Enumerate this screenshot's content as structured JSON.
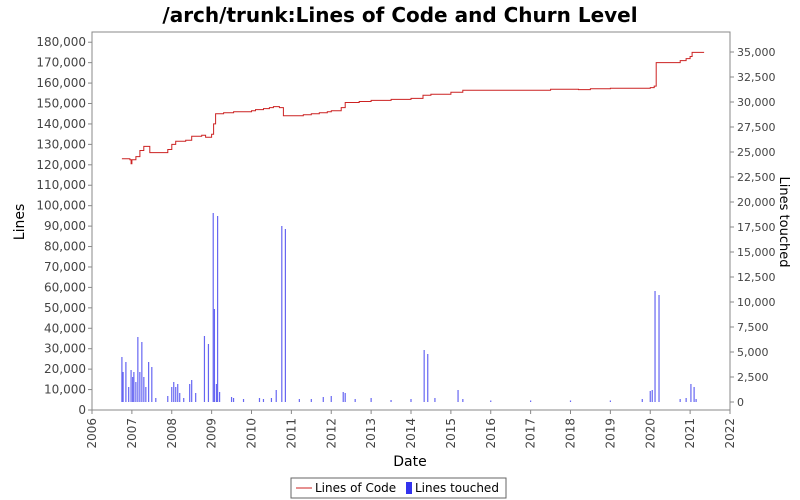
{
  "chart_data": {
    "type": "line",
    "title": "/arch/trunk:Lines of Code and Churn Level",
    "xlabel": "Date",
    "ylabel": "Lines",
    "y2label": "Lines touched",
    "xlim": [
      2006.0,
      2022.0
    ],
    "ylim": [
      0,
      185000
    ],
    "y2lim": [
      -800,
      37000
    ],
    "x_ticks": [
      "2006",
      "2007",
      "2008",
      "2009",
      "2010",
      "2011",
      "2012",
      "2013",
      "2014",
      "2015",
      "2016",
      "2017",
      "2018",
      "2019",
      "2020",
      "2021",
      "2022"
    ],
    "y_ticks": [
      0,
      10000,
      20000,
      30000,
      40000,
      50000,
      60000,
      70000,
      80000,
      90000,
      100000,
      110000,
      120000,
      130000,
      140000,
      150000,
      160000,
      170000,
      180000
    ],
    "y_tick_labels": [
      "0",
      "10,000",
      "20,000",
      "30,000",
      "40,000",
      "50,000",
      "60,000",
      "70,000",
      "80,000",
      "90,000",
      "100,000",
      "110,000",
      "120,000",
      "130,000",
      "140,000",
      "150,000",
      "160,000",
      "170,000",
      "180,000"
    ],
    "y2_ticks": [
      0,
      2500,
      5000,
      7500,
      10000,
      12500,
      15000,
      17500,
      20000,
      22500,
      25000,
      27500,
      30000,
      32500,
      35000
    ],
    "y2_tick_labels": [
      "0",
      "2,500",
      "5,000",
      "7,500",
      "10,000",
      "12,500",
      "15,000",
      "17,500",
      "20,000",
      "22,500",
      "25,000",
      "27,500",
      "30,000",
      "32,500",
      "35,000"
    ],
    "legend_position": "bottom",
    "series": [
      {
        "name": "Lines of Code",
        "axis": "left",
        "color": "#cc2222",
        "style": "step",
        "points": [
          [
            2006.75,
            123000
          ],
          [
            2006.95,
            122500
          ],
          [
            2006.98,
            120500
          ],
          [
            2007.0,
            122500
          ],
          [
            2007.1,
            124000
          ],
          [
            2007.2,
            127000
          ],
          [
            2007.3,
            129000
          ],
          [
            2007.45,
            126000
          ],
          [
            2007.9,
            127500
          ],
          [
            2008.0,
            130000
          ],
          [
            2008.1,
            131500
          ],
          [
            2008.35,
            132000
          ],
          [
            2008.5,
            134000
          ],
          [
            2008.75,
            134500
          ],
          [
            2008.85,
            133500
          ],
          [
            2009.0,
            135000
          ],
          [
            2009.05,
            140000
          ],
          [
            2009.1,
            145000
          ],
          [
            2009.3,
            145500
          ],
          [
            2009.55,
            146000
          ],
          [
            2010.0,
            146500
          ],
          [
            2010.1,
            147000
          ],
          [
            2010.3,
            147500
          ],
          [
            2010.45,
            148000
          ],
          [
            2010.55,
            148500
          ],
          [
            2010.7,
            148000
          ],
          [
            2010.8,
            144000
          ],
          [
            2011.3,
            144500
          ],
          [
            2011.5,
            145000
          ],
          [
            2011.7,
            145500
          ],
          [
            2011.9,
            146000
          ],
          [
            2012.0,
            146500
          ],
          [
            2012.25,
            148000
          ],
          [
            2012.35,
            150500
          ],
          [
            2012.7,
            151000
          ],
          [
            2013.0,
            151500
          ],
          [
            2013.5,
            152000
          ],
          [
            2014.0,
            152500
          ],
          [
            2014.3,
            154000
          ],
          [
            2014.5,
            154500
          ],
          [
            2015.0,
            155500
          ],
          [
            2015.3,
            156500
          ],
          [
            2016.0,
            156500
          ],
          [
            2017.0,
            156500
          ],
          [
            2017.5,
            157000
          ],
          [
            2018.0,
            157000
          ],
          [
            2018.2,
            156800
          ],
          [
            2018.5,
            157200
          ],
          [
            2019.0,
            157500
          ],
          [
            2020.0,
            157800
          ],
          [
            2020.1,
            158500
          ],
          [
            2020.15,
            170000
          ],
          [
            2020.5,
            170000
          ],
          [
            2020.75,
            171000
          ],
          [
            2020.9,
            172000
          ],
          [
            2021.0,
            173000
          ],
          [
            2021.05,
            175000
          ],
          [
            2021.35,
            175000
          ]
        ]
      },
      {
        "name": "Lines touched",
        "axis": "right",
        "color": "#3333ee",
        "style": "impulse",
        "points": [
          [
            2006.75,
            4500
          ],
          [
            2006.78,
            3000
          ],
          [
            2006.85,
            4000
          ],
          [
            2006.92,
            1500
          ],
          [
            2006.98,
            3200
          ],
          [
            2007.02,
            2500
          ],
          [
            2007.05,
            3000
          ],
          [
            2007.1,
            2000
          ],
          [
            2007.15,
            6500
          ],
          [
            2007.2,
            3000
          ],
          [
            2007.25,
            6000
          ],
          [
            2007.3,
            2500
          ],
          [
            2007.35,
            1500
          ],
          [
            2007.42,
            4000
          ],
          [
            2007.5,
            3500
          ],
          [
            2007.6,
            400
          ],
          [
            2007.9,
            600
          ],
          [
            2008.0,
            1500
          ],
          [
            2008.05,
            2000
          ],
          [
            2008.1,
            1500
          ],
          [
            2008.15,
            1800
          ],
          [
            2008.2,
            900
          ],
          [
            2008.3,
            400
          ],
          [
            2008.45,
            1800
          ],
          [
            2008.5,
            2200
          ],
          [
            2008.6,
            900
          ],
          [
            2008.82,
            6600
          ],
          [
            2008.92,
            5800
          ],
          [
            2009.04,
            18900
          ],
          [
            2009.07,
            9300
          ],
          [
            2009.12,
            1800
          ],
          [
            2009.15,
            18600
          ],
          [
            2009.2,
            1000
          ],
          [
            2009.5,
            500
          ],
          [
            2009.55,
            400
          ],
          [
            2009.8,
            300
          ],
          [
            2010.2,
            400
          ],
          [
            2010.3,
            300
          ],
          [
            2010.5,
            400
          ],
          [
            2010.62,
            1200
          ],
          [
            2010.76,
            17600
          ],
          [
            2010.85,
            17300
          ],
          [
            2011.2,
            300
          ],
          [
            2011.5,
            300
          ],
          [
            2011.8,
            500
          ],
          [
            2012.0,
            600
          ],
          [
            2012.3,
            1000
          ],
          [
            2012.35,
            900
          ],
          [
            2012.6,
            300
          ],
          [
            2013.0,
            400
          ],
          [
            2013.5,
            200
          ],
          [
            2014.0,
            300
          ],
          [
            2014.33,
            5200
          ],
          [
            2014.42,
            4800
          ],
          [
            2014.6,
            400
          ],
          [
            2015.18,
            1200
          ],
          [
            2015.3,
            300
          ],
          [
            2016.0,
            150
          ],
          [
            2017.0,
            150
          ],
          [
            2018.0,
            150
          ],
          [
            2019.0,
            150
          ],
          [
            2019.8,
            300
          ],
          [
            2020.0,
            1100
          ],
          [
            2020.05,
            1200
          ],
          [
            2020.12,
            11100
          ],
          [
            2020.22,
            10700
          ],
          [
            2020.75,
            300
          ],
          [
            2020.9,
            400
          ],
          [
            2021.02,
            1800
          ],
          [
            2021.1,
            1500
          ],
          [
            2021.15,
            300
          ]
        ]
      }
    ]
  }
}
